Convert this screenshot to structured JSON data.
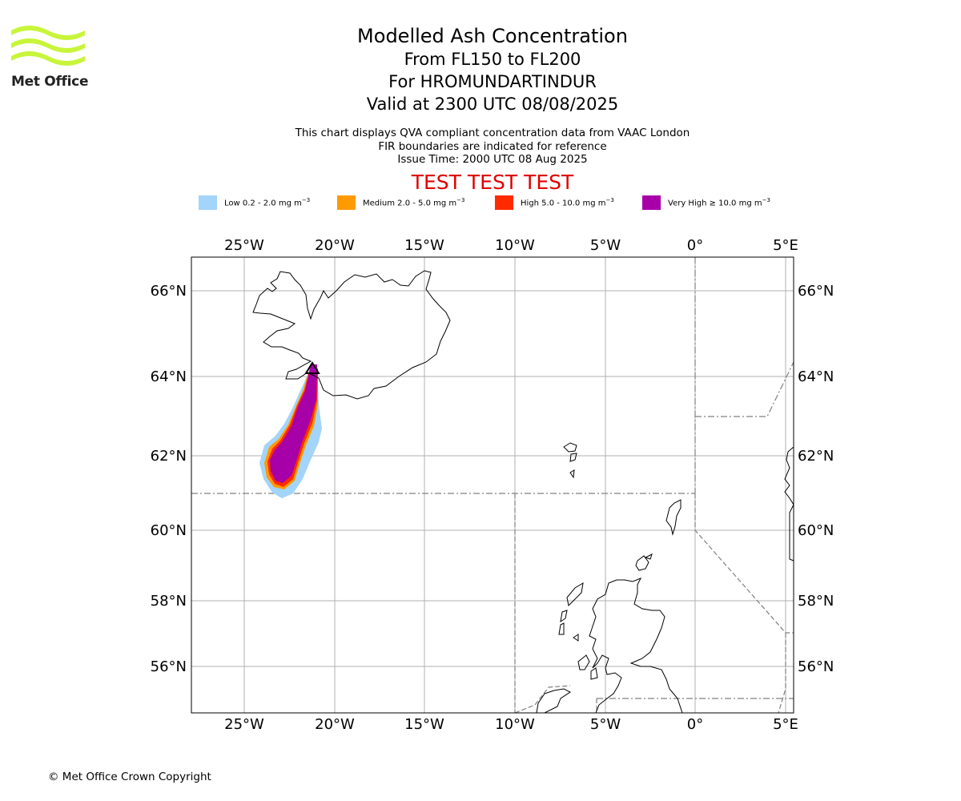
{
  "brand": {
    "name": "Met Office",
    "logo_color": "#c8f53a"
  },
  "title": {
    "main": "Modelled Ash Concentration",
    "levels": "From FL150 to FL200",
    "volcano": "For HROMUNDARTINDUR",
    "valid": "Valid at 2300 UTC 08/08/2025"
  },
  "info": {
    "line1": "This chart displays QVA compliant concentration data from VAAC London",
    "line2": "FIR boundaries are indicated for reference",
    "line3": "Issue Time: 2000 UTC 08 Aug 2025"
  },
  "test_banner": {
    "text": "TEST TEST TEST",
    "color": "#e00000"
  },
  "legend": [
    {
      "label_pre": "Low 0.2 - 2.0 mg m",
      "label_sup": "−3",
      "color": "#a3d4fa"
    },
    {
      "label_pre": "Medium 2.0 - 5.0 mg m",
      "label_sup": "−3",
      "color": "#ff9a00"
    },
    {
      "label_pre": "High 5.0 - 10.0 mg m",
      "label_sup": "−3",
      "color": "#ff2a00"
    },
    {
      "label_pre": "Very High  ≥  10.0 mg m",
      "label_sup": "−3",
      "color": "#a800a8"
    }
  ],
  "map": {
    "lon_ticks": [
      "25°W",
      "20°W",
      "15°W",
      "10°W",
      "5°W",
      "0°",
      "5°E"
    ],
    "lat_ticks": [
      "66°N",
      "64°N",
      "62°N",
      "60°N",
      "58°N",
      "56°N"
    ],
    "coast_color": "#000000",
    "grid_color": "#b0b0b0",
    "fir_color": "#808080"
  },
  "copyright": "© Met Office Crown Copyright"
}
